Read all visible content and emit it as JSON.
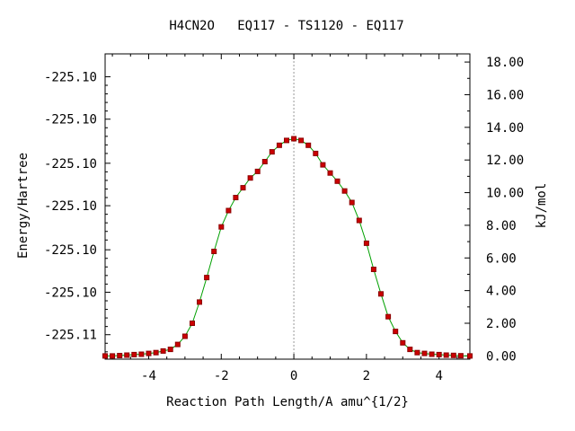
{
  "chart_data": {
    "type": "scatter",
    "title": "H4CN2O   EQ117 - TS1120 - EQ117",
    "xlabel": "Reaction Path Length/A amu^{1/2}",
    "ylabel_left": "Energy/Hartree",
    "ylabel_right": "kJ/mol",
    "xlim": [
      -5.2,
      4.85
    ],
    "ylim_right": [
      -0.2,
      18.5
    ],
    "x_ticks": [
      -4,
      -2,
      0,
      2,
      4
    ],
    "x_tick_labels": [
      "-4",
      "-2",
      "0",
      "2",
      "4"
    ],
    "right_ticks": [
      0,
      2,
      4,
      6,
      8,
      10,
      12,
      14,
      16,
      18
    ],
    "right_tick_labels": [
      "0.00",
      "2.00",
      "4.00",
      "6.00",
      "8.00",
      "10.00",
      "12.00",
      "14.00",
      "16.00",
      "18.00"
    ],
    "left_ticks_kj": [
      1.3,
      3.9,
      6.5,
      9.2,
      11.8,
      14.5,
      17.1
    ],
    "left_tick_labels": [
      "-225.11",
      "-225.10",
      "-225.10",
      "-225.10",
      "-225.10",
      "-225.10",
      "-225.10"
    ],
    "ts_marker_x": 0,
    "grid": false,
    "marker_color": "#cc0000",
    "marker_edge_color": "#8b0000",
    "line_color": "#00a000",
    "series": [
      {
        "x": [
          -5.2,
          -5.0,
          -4.8,
          -4.6,
          -4.4,
          -4.2,
          -4.0,
          -3.8,
          -3.6,
          -3.4,
          -3.2,
          -3.0,
          -2.8,
          -2.6,
          -2.4,
          -2.2,
          -2.0,
          -1.8,
          -1.6,
          -1.4,
          -1.2,
          -1.0,
          -0.8,
          -0.6,
          -0.4,
          -0.2,
          0.0,
          0.2,
          0.4,
          0.6,
          0.8,
          1.0,
          1.2,
          1.4,
          1.6,
          1.8,
          2.0,
          2.2,
          2.4,
          2.6,
          2.8,
          3.0,
          3.2,
          3.4,
          3.6,
          3.8,
          4.0,
          4.2,
          4.4,
          4.6,
          4.85
        ],
        "y": [
          0.0,
          0.0,
          0.02,
          0.05,
          0.08,
          0.1,
          0.15,
          0.2,
          0.3,
          0.4,
          0.7,
          1.2,
          2.0,
          3.3,
          4.8,
          6.4,
          7.9,
          8.9,
          9.7,
          10.3,
          10.9,
          11.3,
          11.9,
          12.5,
          12.9,
          13.2,
          13.3,
          13.2,
          12.9,
          12.4,
          11.7,
          11.2,
          10.7,
          10.1,
          9.4,
          8.3,
          6.9,
          5.3,
          3.8,
          2.4,
          1.5,
          0.8,
          0.4,
          0.2,
          0.15,
          0.1,
          0.08,
          0.05,
          0.03,
          0.01,
          0.0
        ]
      }
    ]
  }
}
